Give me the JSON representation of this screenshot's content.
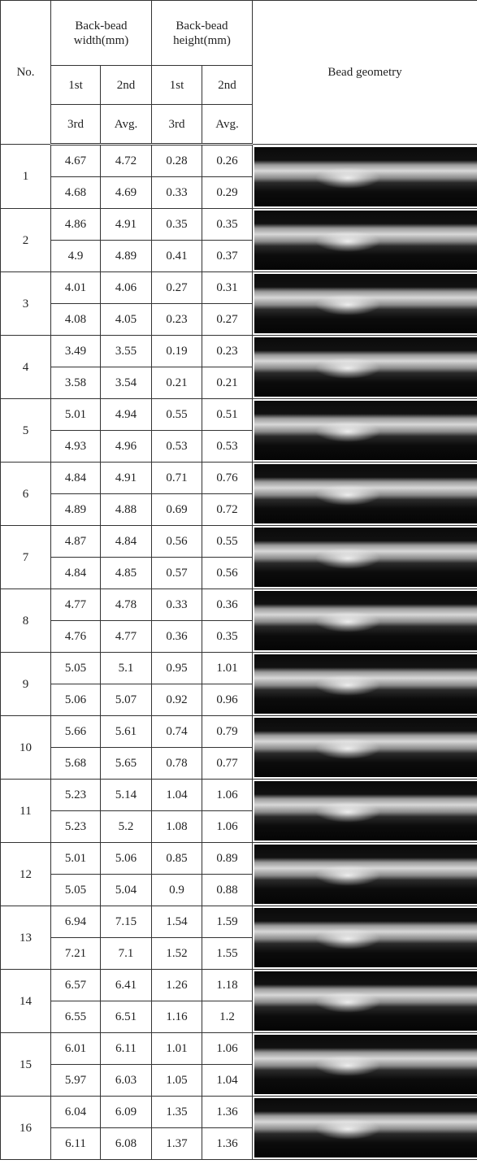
{
  "header": {
    "no": "No.",
    "width": "Back-bead width(mm)",
    "height": "Back-bead height(mm)",
    "geometry": "Bead geometry",
    "row1": [
      "1st",
      "2nd",
      "1st",
      "2nd"
    ],
    "row2": [
      "3rd",
      "Avg.",
      "3rd",
      "Avg."
    ]
  },
  "table": {
    "rows": [
      {
        "no": "1",
        "lines": [
          [
            "4.67",
            "4.72",
            "0.28",
            "0.26"
          ],
          [
            "4.68",
            "4.69",
            "0.33",
            "0.29"
          ]
        ]
      },
      {
        "no": "2",
        "lines": [
          [
            "4.86",
            "4.91",
            "0.35",
            "0.35"
          ],
          [
            "4.9",
            "4.89",
            "0.41",
            "0.37"
          ]
        ]
      },
      {
        "no": "3",
        "lines": [
          [
            "4.01",
            "4.06",
            "0.27",
            "0.31"
          ],
          [
            "4.08",
            "4.05",
            "0.23",
            "0.27"
          ]
        ]
      },
      {
        "no": "4",
        "lines": [
          [
            "3.49",
            "3.55",
            "0.19",
            "0.23"
          ],
          [
            "3.58",
            "3.54",
            "0.21",
            "0.21"
          ]
        ]
      },
      {
        "no": "5",
        "lines": [
          [
            "5.01",
            "4.94",
            "0.55",
            "0.51"
          ],
          [
            "4.93",
            "4.96",
            "0.53",
            "0.53"
          ]
        ]
      },
      {
        "no": "6",
        "lines": [
          [
            "4.84",
            "4.91",
            "0.71",
            "0.76"
          ],
          [
            "4.89",
            "4.88",
            "0.69",
            "0.72"
          ]
        ]
      },
      {
        "no": "7",
        "lines": [
          [
            "4.87",
            "4.84",
            "0.56",
            "0.55"
          ],
          [
            "4.84",
            "4.85",
            "0.57",
            "0.56"
          ]
        ]
      },
      {
        "no": "8",
        "lines": [
          [
            "4.77",
            "4.78",
            "0.33",
            "0.36"
          ],
          [
            "4.76",
            "4.77",
            "0.36",
            "0.35"
          ]
        ]
      },
      {
        "no": "9",
        "lines": [
          [
            "5.05",
            "5.1",
            "0.95",
            "1.01"
          ],
          [
            "5.06",
            "5.07",
            "0.92",
            "0.96"
          ]
        ]
      },
      {
        "no": "10",
        "lines": [
          [
            "5.66",
            "5.61",
            "0.74",
            "0.79"
          ],
          [
            "5.68",
            "5.65",
            "0.78",
            "0.77"
          ]
        ]
      },
      {
        "no": "11",
        "lines": [
          [
            "5.23",
            "5.14",
            "1.04",
            "1.06"
          ],
          [
            "5.23",
            "5.2",
            "1.08",
            "1.06"
          ]
        ]
      },
      {
        "no": "12",
        "lines": [
          [
            "5.01",
            "5.06",
            "0.85",
            "0.89"
          ],
          [
            "5.05",
            "5.04",
            "0.9",
            "0.88"
          ]
        ]
      },
      {
        "no": "13",
        "lines": [
          [
            "6.94",
            "7.15",
            "1.54",
            "1.59"
          ],
          [
            "7.21",
            "7.1",
            "1.52",
            "1.55"
          ]
        ]
      },
      {
        "no": "14",
        "lines": [
          [
            "6.57",
            "6.41",
            "1.26",
            "1.18"
          ],
          [
            "6.55",
            "6.51",
            "1.16",
            "1.2"
          ]
        ]
      },
      {
        "no": "15",
        "lines": [
          [
            "6.01",
            "6.11",
            "1.01",
            "1.06"
          ],
          [
            "5.97",
            "6.03",
            "1.05",
            "1.04"
          ]
        ]
      },
      {
        "no": "16",
        "lines": [
          [
            "6.04",
            "6.09",
            "1.35",
            "1.36"
          ],
          [
            "6.11",
            "6.08",
            "1.37",
            "1.36"
          ]
        ]
      }
    ]
  }
}
